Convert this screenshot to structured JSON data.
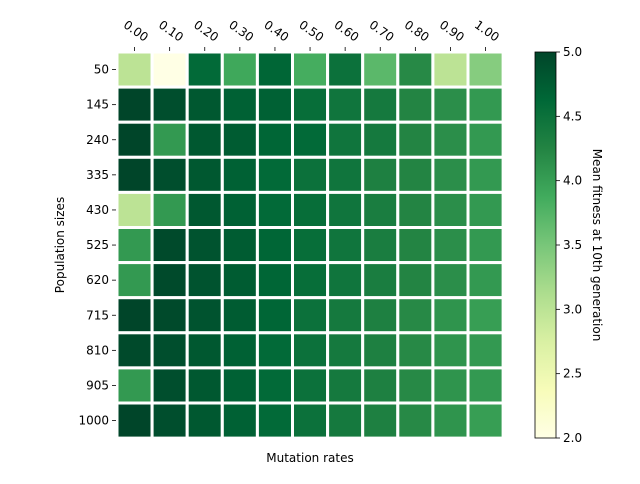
{
  "chart_data": {
    "type": "heatmap",
    "title": "",
    "xlabel": "Mutation rates",
    "ylabel": "Population sizes",
    "x_categories": [
      "0.00",
      "0.10",
      "0.20",
      "0.30",
      "0.40",
      "0.50",
      "0.60",
      "0.70",
      "0.80",
      "0.90",
      "1.00"
    ],
    "y_categories": [
      "50",
      "145",
      "240",
      "335",
      "430",
      "525",
      "620",
      "715",
      "810",
      "905",
      "1000"
    ],
    "x_ticks_position": "top",
    "values": [
      [
        3.0,
        2.0,
        4.6,
        3.9,
        4.65,
        3.85,
        4.5,
        3.7,
        4.2,
        3.0,
        3.4
      ],
      [
        5.0,
        4.9,
        4.8,
        4.7,
        4.7,
        4.55,
        4.45,
        4.4,
        4.25,
        4.15,
        4.05
      ],
      [
        5.0,
        4.05,
        4.8,
        4.75,
        4.65,
        4.6,
        4.45,
        4.4,
        4.25,
        4.15,
        4.05
      ],
      [
        5.0,
        4.9,
        4.8,
        4.7,
        4.6,
        4.5,
        4.45,
        4.3,
        4.25,
        4.15,
        4.05
      ],
      [
        3.0,
        4.05,
        4.8,
        4.7,
        4.6,
        4.55,
        4.45,
        4.35,
        4.25,
        4.15,
        4.05
      ],
      [
        4.05,
        4.95,
        4.85,
        4.75,
        4.65,
        4.55,
        4.45,
        4.35,
        4.25,
        4.15,
        4.05
      ],
      [
        4.05,
        4.95,
        4.85,
        4.75,
        4.65,
        4.55,
        4.45,
        4.35,
        4.25,
        4.15,
        4.05
      ],
      [
        5.0,
        4.95,
        4.85,
        4.75,
        4.65,
        4.5,
        4.4,
        4.3,
        4.2,
        4.1,
        4.0
      ],
      [
        4.95,
        4.9,
        4.8,
        4.7,
        4.6,
        4.5,
        4.4,
        4.3,
        4.2,
        4.1,
        4.05
      ],
      [
        4.05,
        4.9,
        4.8,
        4.7,
        4.6,
        4.5,
        4.4,
        4.3,
        4.2,
        4.1,
        4.05
      ],
      [
        5.0,
        4.9,
        4.8,
        4.7,
        4.6,
        4.5,
        4.4,
        4.3,
        4.2,
        4.1,
        4.0
      ]
    ],
    "colormap": "YlGn",
    "colorbar": {
      "label": "Mean fitness at 10th generation",
      "vmin": 2.0,
      "vmax": 5.0,
      "ticks": [
        "2.0",
        "2.5",
        "3.0",
        "3.5",
        "4.0",
        "4.5",
        "5.0"
      ]
    },
    "cell_border_color": "#ffffff",
    "grid": false,
    "legend": "none"
  }
}
